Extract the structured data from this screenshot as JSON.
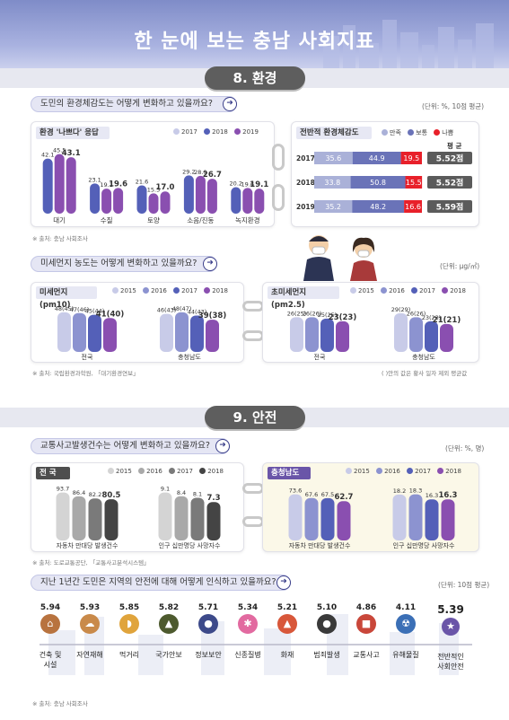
{
  "title": "한 눈에 보는 충남 사회지표",
  "colors": {
    "c2015": "#c8cbe8",
    "c2016": "#8c93d0",
    "c2017": "#5460b8",
    "c2018": "#8a4fb0",
    "c2019": "#8a4fb0",
    "gray1": "#d4d4d4",
    "gray2": "#a9a9a9",
    "gray3": "#7a7a7a",
    "gray4": "#444444",
    "sat": "#aab1d8",
    "mid": "#6a73b8",
    "bad": "#e8202a"
  },
  "sec8": {
    "label": "8. 환경",
    "q1": "도민의 환경체감도는 어떻게 변화하고 있을까요?",
    "q1_unit": "(단위: %, 10점 평균)",
    "panelA": {
      "title": "환경 '나쁘다' 응답",
      "legend": [
        "2017",
        "2018",
        "2019"
      ],
      "cats": [
        "대기",
        "수질",
        "토양",
        "소음/진동",
        "녹지환경"
      ],
      "values": [
        [
          42.1,
          45.5,
          43.1
        ],
        [
          23.1,
          19.1,
          19.6
        ],
        [
          21.6,
          15.5,
          17.0
        ],
        [
          29.2,
          28.9,
          26.7
        ],
        [
          20.2,
          19.6,
          19.1
        ]
      ],
      "labels": [
        [
          "42.1",
          "45.5",
          "43.1"
        ],
        [
          "23.1",
          "19.1",
          "19.6"
        ],
        [
          "21.6",
          "15.5",
          "17.0"
        ],
        [
          "29.2",
          "28.9",
          "26.7"
        ],
        [
          "20.2",
          "19.6",
          "19.1"
        ]
      ]
    },
    "panelB": {
      "title": "전반적 환경체감도",
      "legend": [
        "만족",
        "보통",
        "나쁨"
      ],
      "avg_head": "평 균",
      "rows": [
        {
          "year": "2017",
          "sat": 35.6,
          "mid": 44.9,
          "bad": 19.5,
          "sat_l": "35.6",
          "mid_l": "44.9",
          "bad_l": "19.5",
          "avg": "5.52점"
        },
        {
          "year": "2018",
          "sat": 33.8,
          "mid": 50.8,
          "bad": 15.5,
          "sat_l": "33.8",
          "mid_l": "50.8",
          "bad_l": "15.5",
          "avg": "5.52점"
        },
        {
          "year": "2019",
          "sat": 35.2,
          "mid": 48.2,
          "bad": 16.6,
          "sat_l": "35.2",
          "mid_l": "48.2",
          "bad_l": "16.6",
          "avg": "5.59점"
        }
      ]
    },
    "src1": "※ 출처: 충남 사회조사",
    "q2": "미세먼지 농도는 어떻게 변화하고 있을까요?",
    "q2_unit": "(단위: μg/㎥)",
    "pm10": {
      "title": "미세먼지 (pm10)",
      "legend": [
        "2015",
        "2016",
        "2017",
        "2018"
      ],
      "groups": [
        {
          "name": "전국",
          "values": [
            48,
            47,
            45,
            41
          ],
          "labels": [
            "48(45)",
            "47(46)",
            "45(44)",
            "41(40)"
          ]
        },
        {
          "name": "충청남도",
          "values": [
            46,
            48,
            44,
            39
          ],
          "labels": [
            "46(43)",
            "48(47)",
            "44(43)",
            "39(38)"
          ]
        }
      ]
    },
    "pm25": {
      "title": "초미세먼지 (pm2.5)",
      "legend": [
        "2015",
        "2016",
        "2017",
        "2018"
      ],
      "groups": [
        {
          "name": "전국",
          "values": [
            26,
            26,
            25,
            23
          ],
          "labels": [
            "26(25)",
            "26(26)",
            "25(25)",
            "23(23)"
          ]
        },
        {
          "name": "충청남도",
          "values": [
            29,
            26,
            23,
            21
          ],
          "labels": [
            "29(29)",
            "26(26)",
            "23(23)",
            "21(21)"
          ]
        }
      ]
    },
    "src2": "※ 출처: 국립환경과학원, 「대기환경연보」",
    "note2": "( )안의 값은 황사 일자 제외 평균값"
  },
  "sec9": {
    "label": "9. 안전",
    "q1": "교통사고발생건수는 어떻게 변화하고 있을까요?",
    "q1_unit": "(단위: %, 명)",
    "nation": {
      "title": "전 국",
      "legend": [
        "2015",
        "2016",
        "2017",
        "2018"
      ],
      "groups": [
        {
          "name": "자동차 만대당 발생건수",
          "values": [
            93.7,
            86.4,
            82.2,
            80.5
          ],
          "labels": [
            "93.7",
            "86.4",
            "82.2",
            "80.5"
          ]
        },
        {
          "name": "인구 십만명당 사망자수",
          "values": [
            9.1,
            8.4,
            8.1,
            7.3
          ],
          "labels": [
            "9.1",
            "8.4",
            "8.1",
            "7.3"
          ]
        }
      ]
    },
    "chungnam": {
      "title": "충청남도",
      "legend": [
        "2015",
        "2016",
        "2017",
        "2018"
      ],
      "groups": [
        {
          "name": "자동차 만대당 발생건수",
          "values": [
            73.6,
            67.6,
            67.5,
            62.7
          ],
          "labels": [
            "73.6",
            "67.6",
            "67.5",
            "62.7"
          ]
        },
        {
          "name": "인구 십만명당 사망자수",
          "values": [
            18.2,
            18.3,
            16.3,
            16.3
          ],
          "labels": [
            "18.2",
            "18.3",
            "16.3",
            "16.3"
          ]
        }
      ]
    },
    "src1": "※ 출처: 도로교통공단, 「교통사고분석시스템」",
    "q2": "지난 1년간 도민은 지역의 안전에 대해 어떻게 인식하고 있을까요?",
    "q2_unit": "(단위: 10점 평균)",
    "items": [
      {
        "name": "건축 및\n시설",
        "value": "5.94",
        "icon": "house-icon"
      },
      {
        "name": "자연재해",
        "value": "5.93",
        "icon": "disaster-icon"
      },
      {
        "name": "먹거리",
        "value": "5.85",
        "icon": "food-icon"
      },
      {
        "name": "국가안보",
        "value": "5.82",
        "icon": "helmet-icon"
      },
      {
        "name": "정보보안",
        "value": "5.71",
        "icon": "lock-icon"
      },
      {
        "name": "신종질병",
        "value": "5.34",
        "icon": "virus-icon"
      },
      {
        "name": "화재",
        "value": "5.21",
        "icon": "fire-icon"
      },
      {
        "name": "범죄발생",
        "value": "5.10",
        "icon": "thief-icon"
      },
      {
        "name": "교통사고",
        "value": "4.86",
        "icon": "car-crash-icon"
      },
      {
        "name": "유해물질",
        "value": "4.11",
        "icon": "hazard-icon"
      },
      {
        "name": "전반적인\n사회안전",
        "value": "5.39",
        "icon": "star-icon"
      }
    ],
    "src2": "※ 출처: 충남 사회조사"
  }
}
